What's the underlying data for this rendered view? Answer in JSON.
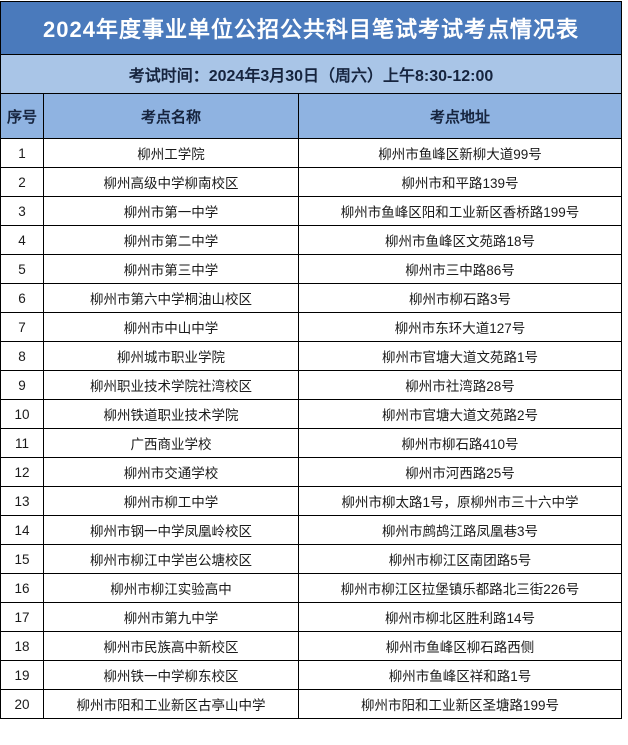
{
  "title": "2024年度事业单位公招公共科目笔试考试考点情况表",
  "exam_time": "考试时间：2024年3月30日（周六）上午8:30-12:00",
  "columns": [
    "序号",
    "考点名称",
    "考点地址"
  ],
  "rows": [
    [
      "1",
      "柳州工学院",
      "柳州市鱼峰区新柳大道99号"
    ],
    [
      "2",
      "柳州高级中学柳南校区",
      "柳州市和平路139号"
    ],
    [
      "3",
      "柳州市第一中学",
      "柳州市鱼峰区阳和工业新区香桥路199号"
    ],
    [
      "4",
      "柳州市第二中学",
      "柳州市鱼峰区文苑路18号"
    ],
    [
      "5",
      "柳州市第三中学",
      "柳州市三中路86号"
    ],
    [
      "6",
      "柳州市第六中学桐油山校区",
      "柳州市柳石路3号"
    ],
    [
      "7",
      "柳州市中山中学",
      "柳州市东环大道127号"
    ],
    [
      "8",
      "柳州城市职业学院",
      "柳州市官塘大道文苑路1号"
    ],
    [
      "9",
      "柳州职业技术学院社湾校区",
      "柳州市社湾路28号"
    ],
    [
      "10",
      "柳州铁道职业技术学院",
      "柳州市官塘大道文苑路2号"
    ],
    [
      "11",
      "广西商业学校",
      "柳州市柳石路410号"
    ],
    [
      "12",
      "柳州市交通学校",
      "柳州市河西路25号"
    ],
    [
      "13",
      "柳州市柳工中学",
      "柳州市柳太路1号，原柳州市三十六中学"
    ],
    [
      "14",
      "柳州市钢一中学凤凰岭校区",
      "柳州市鹧鸪江路凤凰巷3号"
    ],
    [
      "15",
      "柳州市柳江中学岜公塘校区",
      "柳州市柳江区南团路5号"
    ],
    [
      "16",
      "柳州市柳江实验高中",
      "柳州市柳江区拉堡镇乐都路北三街226号"
    ],
    [
      "17",
      "柳州市第九中学",
      "柳州市柳北区胜利路14号"
    ],
    [
      "18",
      "柳州市民族高中新校区",
      "柳州市鱼峰区柳石路西侧"
    ],
    [
      "19",
      "柳州铁一中学柳东校区",
      "柳州市鱼峰区祥和路1号"
    ],
    [
      "20",
      "柳州市阳和工业新区古亭山中学",
      "柳州市阳和工业新区圣塘路199号"
    ]
  ],
  "colors": {
    "title_bg": "#4a7abc",
    "title_text": "#ffffff",
    "time_row_bg": "#a9c5e7",
    "header_row_bg": "#8fb3e1",
    "dark_text": "#16243e",
    "border": "#000000",
    "cell_bg": "#ffffff"
  }
}
